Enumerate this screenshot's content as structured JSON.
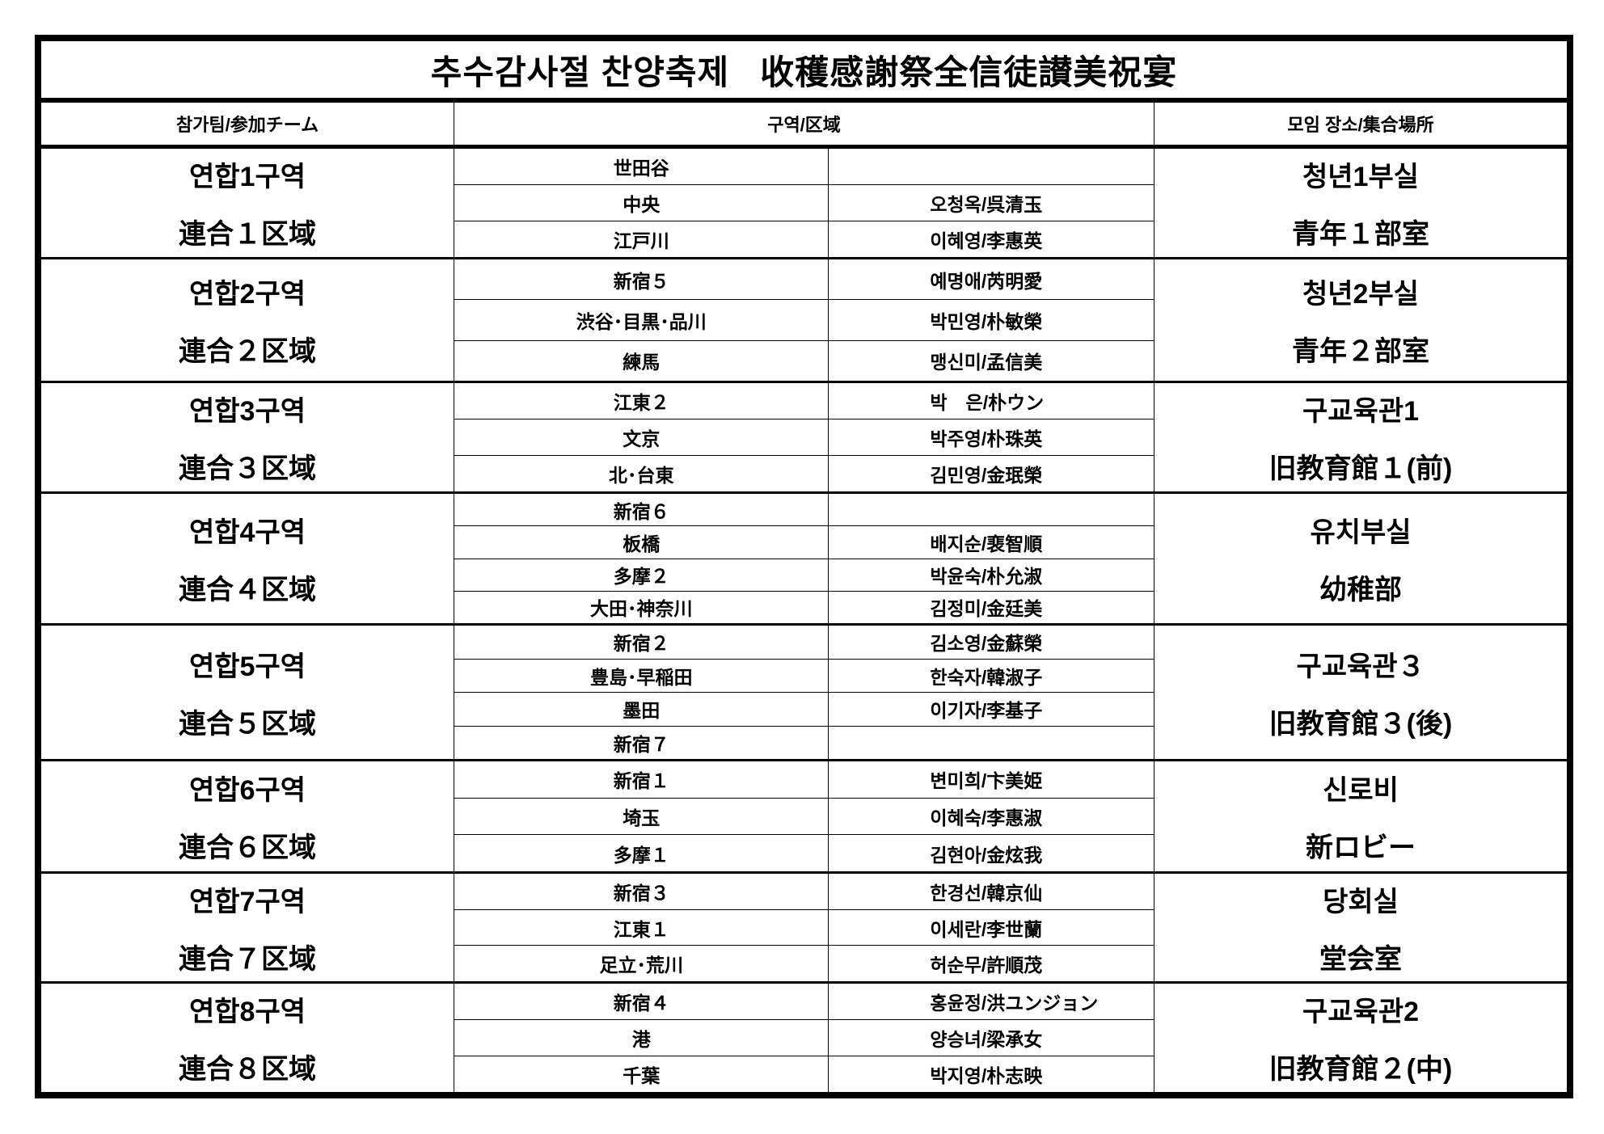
{
  "title": {
    "ko": "추수감사절 찬양축제",
    "ja": "收穫感謝祭全信徒讃美祝宴"
  },
  "headers": {
    "team": "참가팀/参加チーム",
    "district": "구역/区域",
    "place": "모임 장소/集合場所"
  },
  "groups": [
    {
      "team_ko": "연합1구역",
      "team_ja": "連合１区域",
      "place_ko": "청년1부실",
      "place_ja": "青年１部室",
      "rows": [
        {
          "district": "世田谷",
          "leader": ""
        },
        {
          "district": "中央",
          "leader": "오청옥/呉清玉"
        },
        {
          "district": "江戸川",
          "leader": "이혜영/李惠英"
        }
      ]
    },
    {
      "team_ko": "연합2구역",
      "team_ja": "連合２区域",
      "place_ko": "청년2부실",
      "place_ja": "青年２部室",
      "rows": [
        {
          "district": "新宿５",
          "leader": "예명애/芮明愛"
        },
        {
          "district": "渋谷･目黒･品川",
          "leader": "박민영/朴敏榮"
        },
        {
          "district": "練馬",
          "leader": "맹신미/孟信美"
        }
      ]
    },
    {
      "team_ko": "연합3구역",
      "team_ja": "連合３区域",
      "place_ko": "구교육관1",
      "place_ja": "旧教育館１(前)",
      "rows": [
        {
          "district": "江東２",
          "leader": "박　은/朴ウン"
        },
        {
          "district": "文京",
          "leader": "박주영/朴珠英"
        },
        {
          "district": "北･台東",
          "leader": "김민영/金珉榮"
        }
      ]
    },
    {
      "team_ko": "연합4구역",
      "team_ja": "連合４区域",
      "place_ko": "유치부실",
      "place_ja": "幼稚部",
      "rows": [
        {
          "district": "新宿６",
          "leader": ""
        },
        {
          "district": "板橋",
          "leader": "배지순/裵智順"
        },
        {
          "district": "多摩２",
          "leader": "박윤숙/朴允淑"
        },
        {
          "district": "大田･神奈川",
          "leader": "김정미/金廷美"
        }
      ]
    },
    {
      "team_ko": "연합5구역",
      "team_ja": "連合５区域",
      "place_ko": "구교육관３",
      "place_ja": "旧教育館３(後)",
      "rows": [
        {
          "district": "新宿２",
          "leader": "김소영/金蘇榮"
        },
        {
          "district": "豊島･早稲田",
          "leader": "한숙자/韓淑子"
        },
        {
          "district": "墨田",
          "leader": "이기자/李基子"
        },
        {
          "district": "新宿７",
          "leader": ""
        }
      ]
    },
    {
      "team_ko": "연합6구역",
      "team_ja": "連合６区域",
      "place_ko": "신로비",
      "place_ja": "新ロビー",
      "rows": [
        {
          "district": "新宿１",
          "leader": "변미희/卞美姫"
        },
        {
          "district": "埼玉",
          "leader": "이혜숙/李惠淑"
        },
        {
          "district": "多摩１",
          "leader": "김현아/金炫我"
        }
      ]
    },
    {
      "team_ko": "연합7구역",
      "team_ja": "連合７区域",
      "place_ko": "당회실",
      "place_ja": "堂会室",
      "rows": [
        {
          "district": "新宿３",
          "leader": "한경선/韓京仙"
        },
        {
          "district": "江東１",
          "leader": "이세란/李世蘭"
        },
        {
          "district": "足立･荒川",
          "leader": "허순무/許順茂"
        }
      ]
    },
    {
      "team_ko": "연합8구역",
      "team_ja": "連合８区域",
      "place_ko": "구교육관2",
      "place_ja": "旧教育館２(中)",
      "rows": [
        {
          "district": "新宿４",
          "leader": "홍윤정/洪ユンジョン"
        },
        {
          "district": "港",
          "leader": "양승녀/梁承女"
        },
        {
          "district": "千葉",
          "leader": "박지영/朴志映"
        }
      ]
    }
  ]
}
